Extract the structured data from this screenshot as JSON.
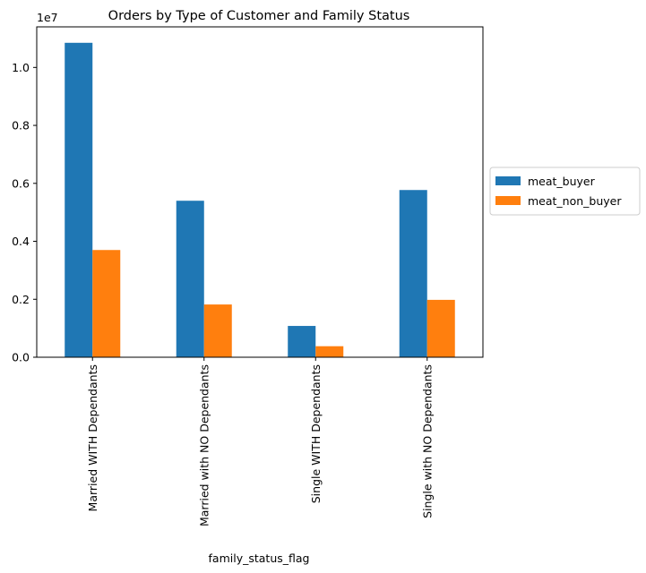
{
  "chart_data": {
    "type": "bar",
    "title": "Orders by Type of Customer and Family Status",
    "xlabel": "family_status_flag",
    "ylabel": "",
    "categories": [
      "Married WITH Dependants",
      "Married with NO Dependants",
      "Single WITH Dependants",
      "Single with NO Dependants"
    ],
    "series": [
      {
        "name": "meat_buyer",
        "color": "#1f77b4",
        "values": [
          10850000,
          5400000,
          1080000,
          5770000
        ]
      },
      {
        "name": "meat_non_buyer",
        "color": "#ff7f0e",
        "values": [
          3700000,
          1820000,
          380000,
          1980000
        ]
      }
    ],
    "ylim": [
      0,
      11400000
    ],
    "y_ticks": [
      0,
      2000000,
      4000000,
      6000000,
      8000000,
      10000000
    ],
    "y_tick_labels": [
      "0.0",
      "0.2",
      "0.4",
      "0.6",
      "0.8",
      "1.0"
    ],
    "y_offset_label": "1e7",
    "legend_position": "outside-right",
    "grid": false
  }
}
